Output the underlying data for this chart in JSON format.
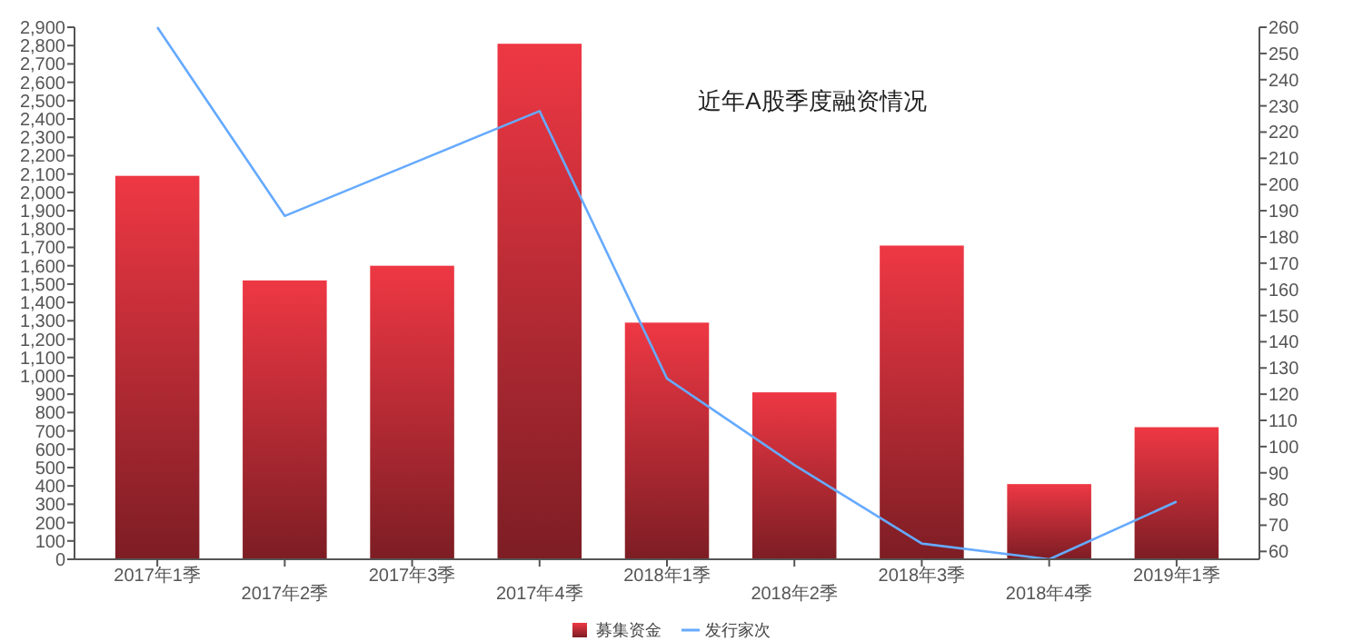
{
  "chart_data": {
    "type": "bar",
    "title": "近年A股季度融资情况",
    "categories": [
      "2017年1季",
      "2017年2季",
      "2017年3季",
      "2017年4季",
      "2018年1季",
      "2018年2季",
      "2018年3季",
      "2018年4季",
      "2019年1季"
    ],
    "series": [
      {
        "name": "募集资金",
        "color": "#ee3844",
        "values": [
          2090,
          1520,
          1600,
          2810,
          1290,
          910,
          1710,
          410,
          720
        ]
      },
      {
        "name": "发行家次",
        "type": "line",
        "axis": "y2",
        "color": "#66aaff",
        "values": [
          260,
          188,
          208,
          228,
          126,
          93,
          63,
          57,
          79
        ]
      }
    ],
    "ylim": [
      0,
      2900
    ],
    "yticks": [
      0,
      100,
      200,
      300,
      400,
      500,
      600,
      700,
      800,
      900,
      {
        "value": 1000,
        "label": "1,000"
      },
      {
        "value": 1100,
        "label": "1,100"
      },
      {
        "value": 1200,
        "label": "1,200"
      },
      {
        "value": 1300,
        "label": "1,300"
      },
      {
        "value": 1400,
        "label": "1,400"
      },
      {
        "value": 1500,
        "label": "1,500"
      },
      {
        "value": 1600,
        "label": "1,600"
      },
      {
        "value": 1700,
        "label": "1,700"
      },
      {
        "value": 1800,
        "label": "1,800"
      },
      {
        "value": 1900,
        "label": "1,900"
      },
      {
        "value": 2000,
        "label": "2,000"
      },
      {
        "value": 2100,
        "label": "2,100"
      },
      {
        "value": 2200,
        "label": "2,200"
      },
      {
        "value": 2300,
        "label": "2,300"
      },
      {
        "value": 2400,
        "label": "2,400"
      },
      {
        "value": 2500,
        "label": "2,500"
      },
      {
        "value": 2600,
        "label": "2,600"
      },
      {
        "value": 2700,
        "label": "2,700"
      },
      {
        "value": 2800,
        "label": "2,800"
      },
      {
        "value": 2900,
        "label": "2,900"
      }
    ],
    "y2lim": [
      57,
      260
    ],
    "y2ticks": [
      60,
      70,
      80,
      90,
      100,
      110,
      120,
      130,
      140,
      150,
      160,
      170,
      180,
      190,
      200,
      210,
      220,
      230,
      240,
      250,
      260
    ],
    "legend": "bottom",
    "grid": false
  }
}
